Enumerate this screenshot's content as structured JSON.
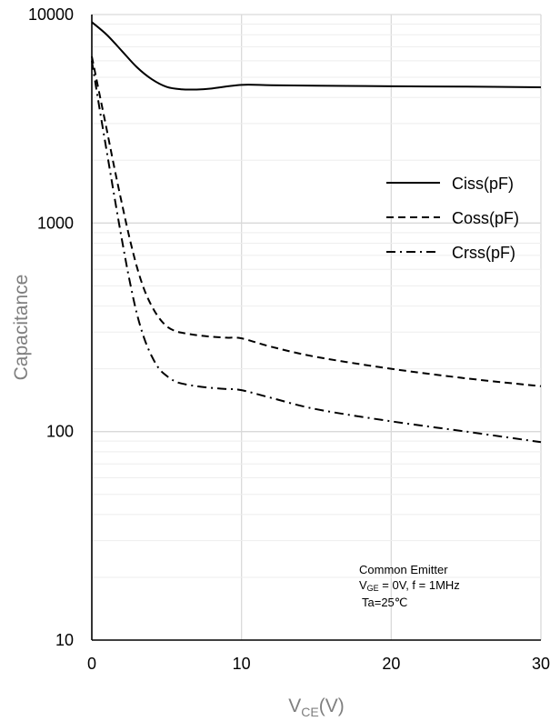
{
  "chart_data": {
    "type": "line",
    "title": "",
    "xlabel": {
      "base": "V",
      "sub": "CE",
      "tail": "(V)"
    },
    "ylabel": "Capacitance",
    "xlim": [
      0,
      30
    ],
    "ylim": [
      10,
      10000
    ],
    "y_scale": "log",
    "x_ticks": [
      "0",
      "10",
      "20",
      "30"
    ],
    "x_tick_values": [
      0,
      10,
      20,
      30
    ],
    "y_ticks": [
      "10",
      "100",
      "1000",
      "10000"
    ],
    "y_tick_values": [
      10,
      100,
      1000,
      10000
    ],
    "grid": true,
    "legend_position": "right",
    "series": [
      {
        "name": "Ciss(pF)",
        "dash": "solid",
        "x": [
          0,
          1,
          2,
          3,
          4,
          5,
          6,
          7,
          8,
          10,
          12,
          15,
          20,
          25,
          30
        ],
        "y": [
          9200,
          8000,
          6700,
          5600,
          4900,
          4500,
          4380,
          4370,
          4420,
          4600,
          4580,
          4560,
          4530,
          4510,
          4480
        ]
      },
      {
        "name": "Coss(pF)",
        "dash": "dashed",
        "x": [
          0,
          0.5,
          1,
          1.5,
          2,
          2.5,
          3,
          3.5,
          4,
          4.5,
          5,
          5.5,
          6,
          7,
          8,
          9,
          10,
          12,
          15,
          20,
          25,
          30
        ],
        "y": [
          6300,
          4200,
          2800,
          1850,
          1250,
          860,
          620,
          480,
          400,
          350,
          320,
          305,
          298,
          290,
          285,
          282,
          280,
          255,
          228,
          200,
          180,
          165
        ]
      },
      {
        "name": "Crss(pF)",
        "dash": "dashdot",
        "x": [
          0,
          0.5,
          1,
          1.5,
          2,
          2.5,
          3,
          3.5,
          4,
          4.5,
          5,
          5.5,
          6,
          7,
          8,
          9,
          10,
          12,
          15,
          20,
          25,
          30
        ],
        "y": [
          6000,
          3600,
          2200,
          1350,
          840,
          540,
          370,
          280,
          230,
          200,
          185,
          175,
          170,
          165,
          162,
          160,
          158,
          145,
          128,
          112,
          100,
          89
        ]
      }
    ],
    "annotation": {
      "line1": "Common Emitter",
      "line2_base": "V",
      "line2_sub": "GE",
      "line2_rest": " = 0V, f = 1MHz",
      "line3": "Ta=25℃"
    }
  }
}
